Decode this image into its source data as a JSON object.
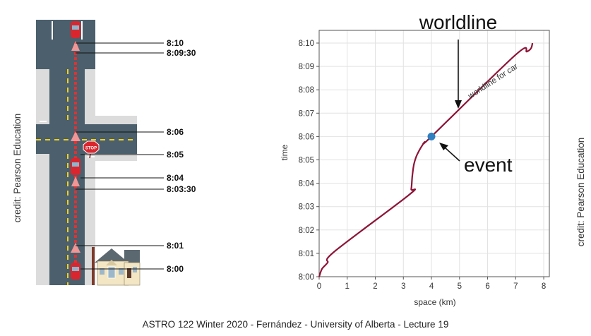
{
  "credit_left": "credit: Pearson Education",
  "credit_right": "credit: Pearson Education",
  "footer": "ASTRO 122 Winter 2020 - Fernández - University of Alberta - Lecture 19",
  "stop_sign": "STOP",
  "street_times": [
    {
      "label": "8:10"
    },
    {
      "label": "8:09:30"
    },
    {
      "label": "8:06"
    },
    {
      "label": "8:05"
    },
    {
      "label": "8:04"
    },
    {
      "label": "8:03:30"
    },
    {
      "label": "8:01"
    },
    {
      "label": "8:00"
    }
  ],
  "annotations": {
    "worldline": "worldline",
    "event": "event",
    "curve_label": "worldline for car"
  },
  "colors": {
    "road": "#4b5f6c",
    "sidewalk": "#dcdcdc",
    "lane_line": "#f2d21b",
    "worldline": "#8c1538",
    "event_dot": "#2f7fc1",
    "car": "#d9262e"
  },
  "chart_data": {
    "type": "line",
    "xlabel": "space (km)",
    "ylabel": "time",
    "xlim": [
      0,
      8.2
    ],
    "ylim_minutes": [
      0,
      10
    ],
    "x_ticks": [
      "0",
      "1",
      "2",
      "3",
      "4",
      "5",
      "6",
      "7",
      "8"
    ],
    "y_ticks": [
      "8:00",
      "8:01",
      "8:02",
      "8:03",
      "8:04",
      "8:05",
      "8:06",
      "8:07",
      "8:08",
      "8:09",
      "8:10"
    ],
    "grid": true,
    "series": [
      {
        "name": "worldline for car",
        "x": [
          0,
          0.1,
          0.3,
          0.55,
          3.2,
          3.28,
          3.32,
          3.38,
          3.5,
          3.75,
          4.0,
          7.0,
          7.4,
          7.55,
          7.6
        ],
        "y": [
          "8:00",
          "8:00:20",
          "8:00:36",
          "8:01:05",
          "8:03:30",
          "8:03:45",
          "8:04:20",
          "8:04:50",
          "8:05:15",
          "8:05:45",
          "8:06",
          "8:09:30",
          "8:09:38",
          "8:09:47",
          "8:10"
        ]
      }
    ],
    "event_point": {
      "x": 4.0,
      "y": "8:06"
    }
  }
}
